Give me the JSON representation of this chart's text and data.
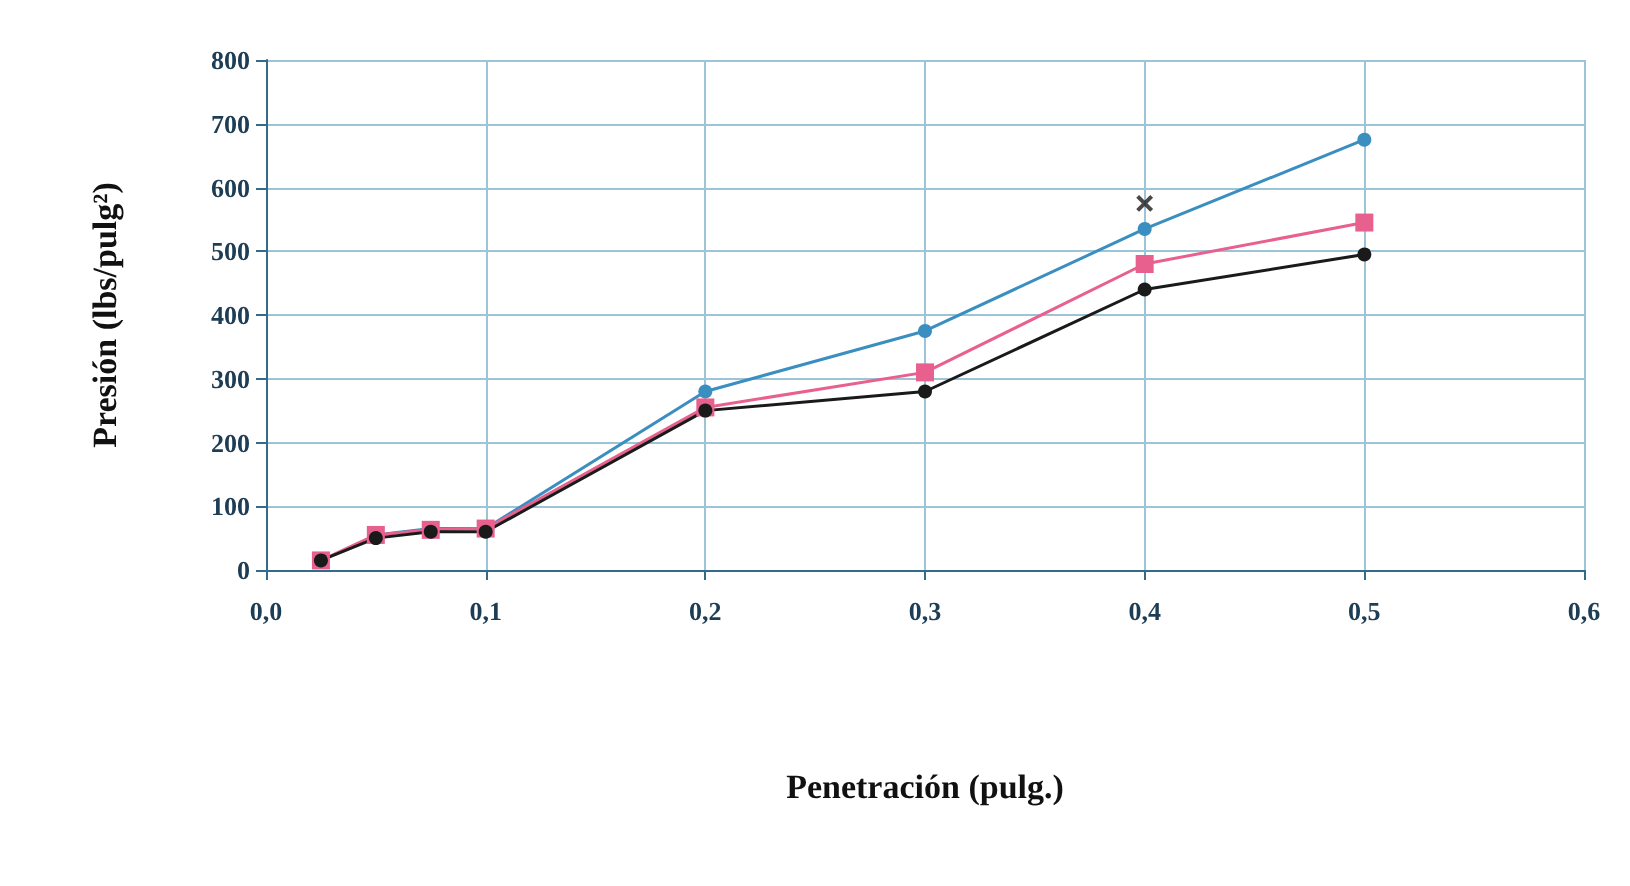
{
  "chart_data": {
    "type": "line",
    "xlabel": "Penetración (pulg.)",
    "ylabel": "Presión (lbs/pulg²)",
    "x": [
      0.025,
      0.05,
      0.075,
      0.1,
      0.2,
      0.3,
      0.4,
      0.5
    ],
    "series": [
      {
        "color": "#3a8fc0",
        "marker": "circle",
        "values": [
          null,
          55,
          65,
          65,
          280,
          375,
          535,
          675
        ]
      },
      {
        "color": "#e8608e",
        "marker": "square",
        "values": [
          15,
          55,
          63,
          65,
          255,
          310,
          480,
          545
        ]
      },
      {
        "color": "#1a1a1a",
        "marker": "circle",
        "values": [
          15,
          50,
          60,
          60,
          250,
          280,
          440,
          495
        ]
      },
      {
        "type": "scatter",
        "color": "#1a1a1a",
        "marker": "cross",
        "x": [
          0.4
        ],
        "values": [
          575
        ]
      }
    ],
    "xlim": [
      0,
      0.6
    ],
    "ylim": [
      0,
      800
    ],
    "xticks": [
      {
        "value": 0,
        "label": "0,0"
      },
      {
        "value": 0.1,
        "label": "0,1"
      },
      {
        "value": 0.2,
        "label": "0,2"
      },
      {
        "value": 0.3,
        "label": "0,3"
      },
      {
        "value": 0.4,
        "label": "0,4"
      },
      {
        "value": 0.5,
        "label": "0,5"
      },
      {
        "value": 0.6,
        "label": "0,6"
      }
    ],
    "yticks": [
      0,
      100,
      200,
      300,
      400,
      500,
      600,
      700,
      800
    ],
    "grid": true,
    "line_style": "solid"
  }
}
